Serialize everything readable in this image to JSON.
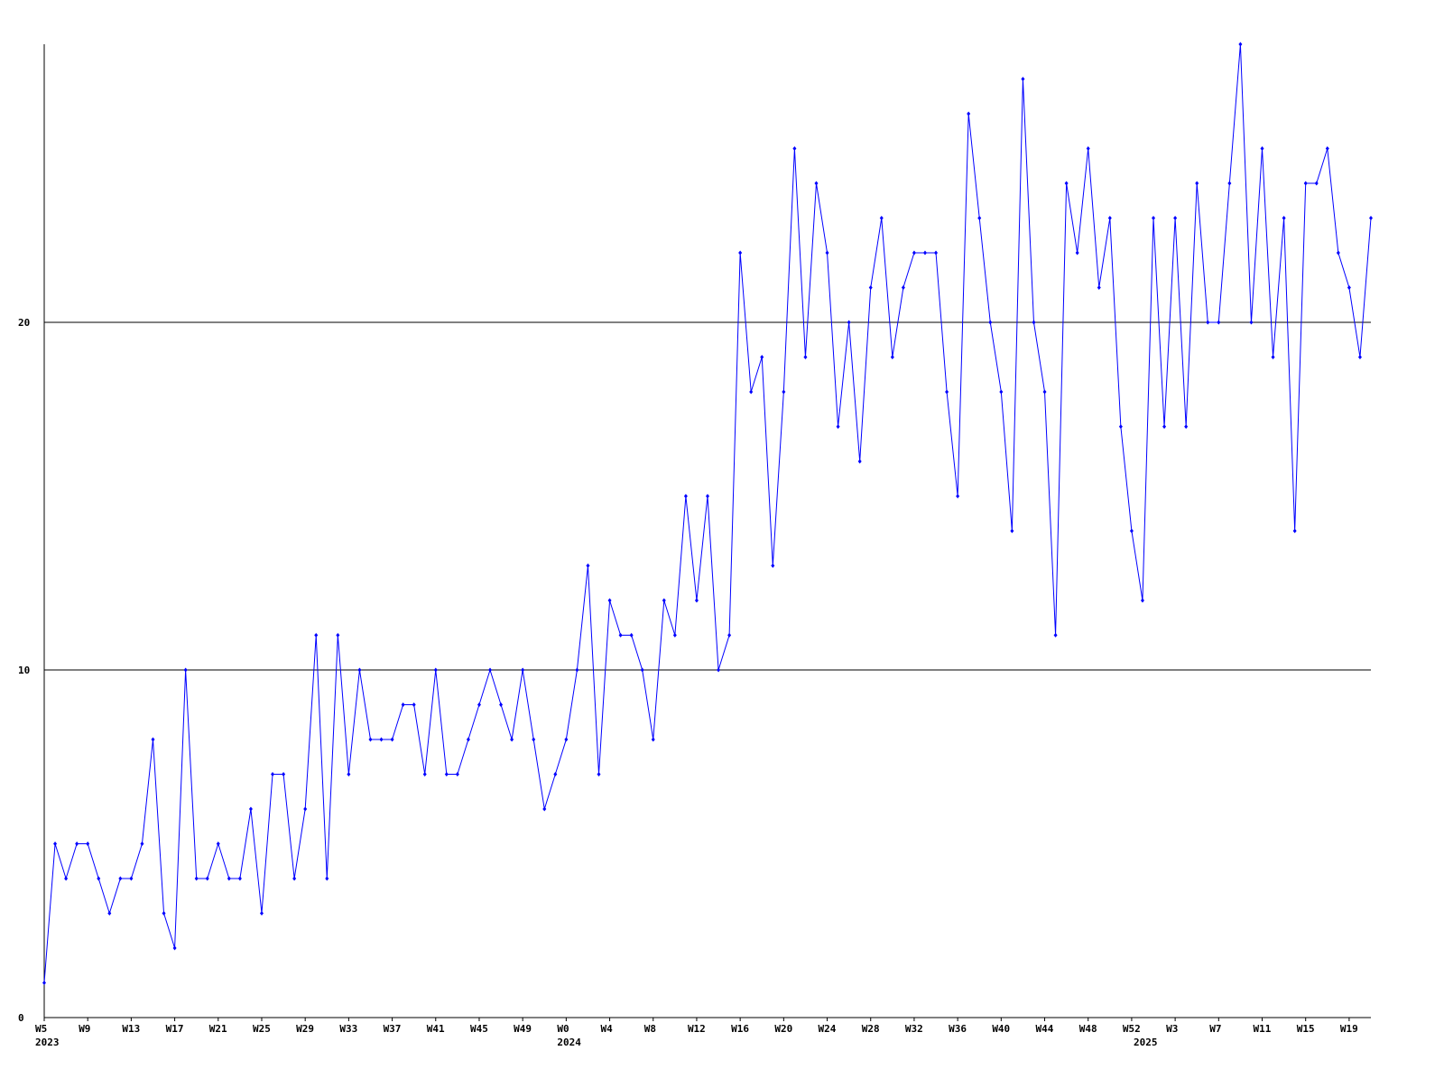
{
  "chart_data": {
    "type": "line",
    "categories": [
      "W5",
      null,
      null,
      null,
      "W9",
      null,
      null,
      null,
      "W13",
      null,
      null,
      null,
      "W17",
      null,
      null,
      null,
      "W21",
      null,
      null,
      null,
      "W25",
      null,
      null,
      null,
      "W29",
      null,
      null,
      null,
      "W33",
      null,
      null,
      null,
      "W37",
      null,
      null,
      null,
      "W41",
      null,
      null,
      null,
      "W45",
      null,
      null,
      null,
      "W49",
      null,
      null,
      null,
      "W0",
      null,
      null,
      null,
      "W4",
      null,
      null,
      null,
      "W8",
      null,
      null,
      null,
      "W12",
      null,
      null,
      null,
      "W16",
      null,
      null,
      null,
      "W20",
      null,
      null,
      null,
      "W24",
      null,
      null,
      null,
      "W28",
      null,
      null,
      null,
      "W32",
      null,
      null,
      null,
      "W36",
      null,
      null,
      null,
      "W40",
      null,
      null,
      null,
      "W44",
      null,
      null,
      null,
      "W48",
      null,
      null,
      null,
      "W52",
      null,
      null,
      null,
      "W3",
      null,
      null,
      null,
      "W7",
      null,
      null,
      null,
      "W11",
      null,
      null,
      null,
      "W15",
      null,
      null,
      null,
      "W19",
      null,
      null
    ],
    "x_groups": [
      {
        "label": "2023",
        "start": 0
      },
      {
        "label": "2024",
        "start": 48
      },
      {
        "label": "2025",
        "start": 101
      }
    ],
    "series": [
      {
        "color": "#0000ff",
        "values": [
          1,
          5,
          4,
          5,
          5,
          4,
          3,
          4,
          4,
          5,
          8,
          3,
          2,
          10,
          4,
          4,
          5,
          4,
          4,
          6,
          3,
          7,
          7,
          4,
          6,
          11,
          4,
          11,
          7,
          10,
          8,
          8,
          8,
          9,
          9,
          7,
          10,
          7,
          7,
          8,
          9,
          10,
          9,
          8,
          10,
          8,
          6,
          7,
          8,
          10,
          13,
          7,
          12,
          11,
          11,
          10,
          8,
          12,
          11,
          15,
          12,
          15,
          10,
          11,
          22,
          18,
          19,
          13,
          18,
          25,
          19,
          24,
          22,
          17,
          20,
          16,
          21,
          23,
          19,
          21,
          22,
          22,
          22,
          18,
          15,
          26,
          23,
          20,
          18,
          14,
          27,
          20,
          18,
          11,
          24,
          22,
          25,
          21,
          23,
          17,
          14,
          12,
          23,
          17,
          23,
          17,
          24,
          20,
          20,
          24,
          28,
          20,
          25,
          19,
          23,
          14,
          24,
          24,
          25,
          22,
          21,
          19,
          23
        ]
      }
    ],
    "ylim": [
      0,
      28
    ],
    "yticks": [
      0,
      10,
      20
    ],
    "grid": true
  }
}
